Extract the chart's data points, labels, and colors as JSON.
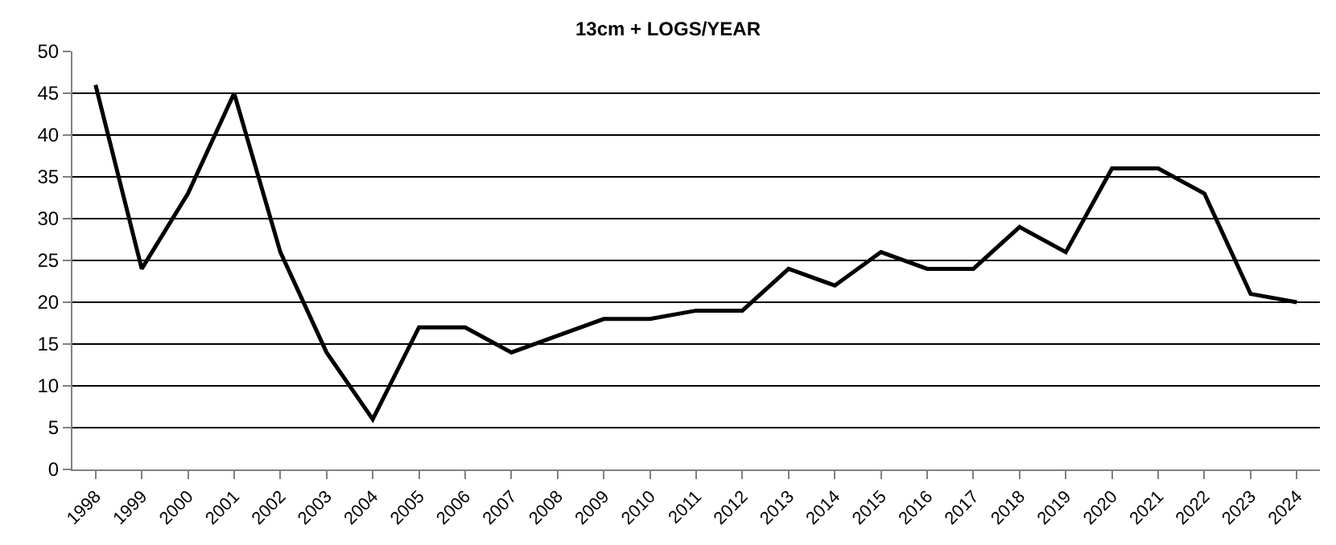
{
  "chart_data": {
    "type": "line",
    "title": "13cm + LOGS/YEAR",
    "categories": [
      "1998",
      "1999",
      "2000",
      "2001",
      "2002",
      "2003",
      "2004",
      "2005",
      "2006",
      "2007",
      "2008",
      "2009",
      "2010",
      "2011",
      "2012",
      "2013",
      "2014",
      "2015",
      "2016",
      "2017",
      "2018",
      "2019",
      "2020",
      "2021",
      "2022",
      "2023",
      "2024"
    ],
    "series": [
      {
        "color": "#000000",
        "values": [
          46,
          24,
          33,
          45,
          26,
          14,
          6,
          17,
          17,
          14,
          16,
          18,
          18,
          19,
          19,
          24,
          22,
          26,
          24,
          24,
          29,
          26,
          36,
          36,
          33,
          21,
          20
        ]
      }
    ],
    "ylim": [
      0,
      50
    ],
    "yticks": [
      0,
      5,
      10,
      15,
      20,
      25,
      30,
      35,
      40,
      45,
      50
    ],
    "grid": "y",
    "marker": "none",
    "line_style": "solid"
  }
}
